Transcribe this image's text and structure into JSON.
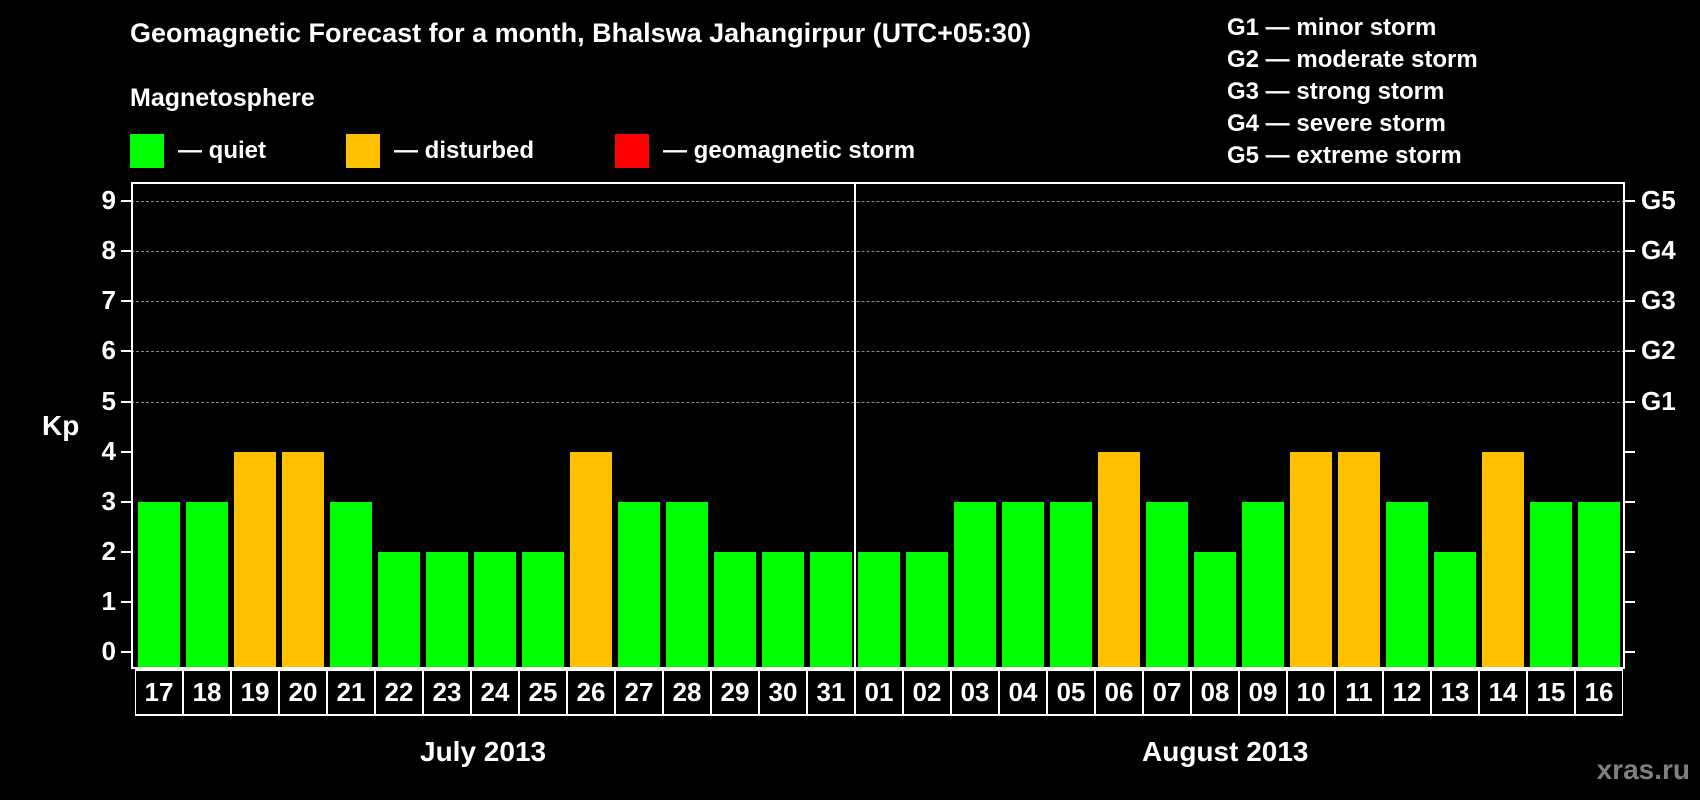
{
  "header": {
    "title": "Geomagnetic Forecast for a month, Bhalswa Jahangirpur (UTC+05:30)",
    "subtitle": "Magnetosphere"
  },
  "legend": [
    {
      "label": "— quiet",
      "color": "#00ff00"
    },
    {
      "label": "— disturbed",
      "color": "#ffc000"
    },
    {
      "label": "— geomagnetic storm",
      "color": "#ff0000"
    }
  ],
  "storm_scale": [
    "G1 — minor storm",
    "G2 — moderate storm",
    "G3 — strong storm",
    "G4 — severe storm",
    "G5 — extreme storm"
  ],
  "axis": {
    "ylabel": "Kp",
    "yticks": [
      "0",
      "1",
      "2",
      "3",
      "4",
      "5",
      "6",
      "7",
      "8",
      "9"
    ],
    "right_labels": [
      {
        "value": 5,
        "label": "G1"
      },
      {
        "value": 6,
        "label": "G2"
      },
      {
        "value": 7,
        "label": "G3"
      },
      {
        "value": 8,
        "label": "G4"
      },
      {
        "value": 9,
        "label": "G5"
      }
    ]
  },
  "months": [
    "July 2013",
    "August 2013"
  ],
  "watermark": "xras.ru",
  "chart_data": {
    "type": "bar",
    "title": "Geomagnetic Forecast for a month, Bhalswa Jahangirpur (UTC+05:30)",
    "xlabel": "",
    "ylabel": "Kp",
    "ylim": [
      0,
      9
    ],
    "grid": true,
    "legend_position": "top",
    "categories": [
      "17",
      "18",
      "19",
      "20",
      "21",
      "22",
      "23",
      "24",
      "25",
      "26",
      "27",
      "28",
      "29",
      "30",
      "31",
      "01",
      "02",
      "03",
      "04",
      "05",
      "06",
      "07",
      "08",
      "09",
      "10",
      "11",
      "12",
      "13",
      "14",
      "15",
      "16"
    ],
    "month_groups": [
      {
        "label": "July 2013",
        "start": 0,
        "end": 14
      },
      {
        "label": "August 2013",
        "start": 15,
        "end": 30
      }
    ],
    "values": [
      3,
      3,
      4,
      4,
      3,
      2,
      2,
      2,
      2,
      4,
      3,
      3,
      2,
      2,
      2,
      2,
      2,
      3,
      3,
      3,
      4,
      3,
      2,
      3,
      4,
      4,
      3,
      2,
      4,
      3,
      3
    ],
    "status": [
      "quiet",
      "quiet",
      "disturbed",
      "disturbed",
      "quiet",
      "quiet",
      "quiet",
      "quiet",
      "quiet",
      "disturbed",
      "quiet",
      "quiet",
      "quiet",
      "quiet",
      "quiet",
      "quiet",
      "quiet",
      "quiet",
      "quiet",
      "quiet",
      "disturbed",
      "quiet",
      "quiet",
      "quiet",
      "disturbed",
      "disturbed",
      "quiet",
      "quiet",
      "disturbed",
      "quiet",
      "quiet"
    ],
    "status_colors": {
      "quiet": "#00ff00",
      "disturbed": "#ffc000",
      "storm": "#ff0000"
    },
    "storm_levels": {
      "G1": 5,
      "G2": 6,
      "G3": 7,
      "G4": 8,
      "G5": 9
    }
  }
}
